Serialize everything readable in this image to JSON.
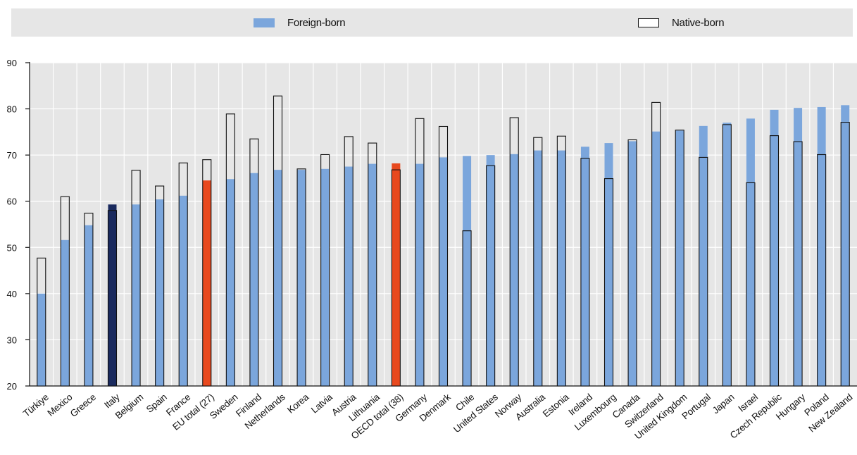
{
  "chart_data": {
    "type": "bar",
    "legend_position": "top",
    "grid": true,
    "ylim": [
      20,
      90
    ],
    "yticks": [
      20,
      30,
      40,
      50,
      60,
      70,
      80,
      90
    ],
    "categories": [
      "Türkiye",
      "Mexico",
      "Greece",
      "Italy",
      "Belgium",
      "Spain",
      "France",
      "EU total (27)",
      "Sweden",
      "Finland",
      "Netherlands",
      "Korea",
      "Latvia",
      "Austria",
      "Lithuania",
      "OECD total (38)",
      "Germany",
      "Denmark",
      "Chile",
      "United States",
      "Norway",
      "Australia",
      "Estonia",
      "Ireland",
      "Luxembourg",
      "Canada",
      "Switzerland",
      "United Kingdom",
      "Portugal",
      "Japan",
      "Israel",
      "Czech Republic",
      "Hungary",
      "Poland",
      "New Zealand"
    ],
    "series": [
      {
        "name": "Foreign-born",
        "style": "filled",
        "color": "#7ba6dc",
        "values": [
          40.0,
          51.6,
          54.8,
          59.3,
          59.3,
          60.4,
          61.2,
          64.5,
          64.8,
          66.1,
          66.8,
          66.8,
          67.0,
          67.5,
          68.1,
          68.2,
          68.1,
          69.5,
          69.8,
          70.0,
          70.2,
          71.0,
          71.0,
          71.8,
          72.6,
          73.0,
          75.1,
          75.3,
          76.3,
          77.0,
          77.9,
          79.8,
          80.2,
          80.4,
          80.8
        ]
      },
      {
        "name": "Native-born",
        "style": "outline",
        "color": "#111111",
        "values": [
          47.7,
          61.0,
          57.4,
          58.0,
          66.7,
          63.3,
          68.3,
          69.0,
          78.9,
          73.5,
          82.8,
          67.0,
          70.1,
          74.0,
          72.6,
          66.8,
          77.9,
          76.2,
          53.6,
          67.7,
          78.1,
          73.8,
          74.1,
          69.3,
          64.9,
          73.3,
          81.4,
          75.4,
          69.5,
          76.6,
          64.0,
          74.2,
          72.9,
          70.1,
          77.1
        ]
      }
    ],
    "highlight_colors": {
      "Italy": "#1a2a5e",
      "EU total (27)": "#e8491e",
      "OECD total (38)": "#e8491e"
    },
    "colors": {
      "foreign": "#7ba6dc",
      "plot_background": "#e6e6e6",
      "gridline": "#ffffff",
      "axis": "#111111"
    }
  }
}
